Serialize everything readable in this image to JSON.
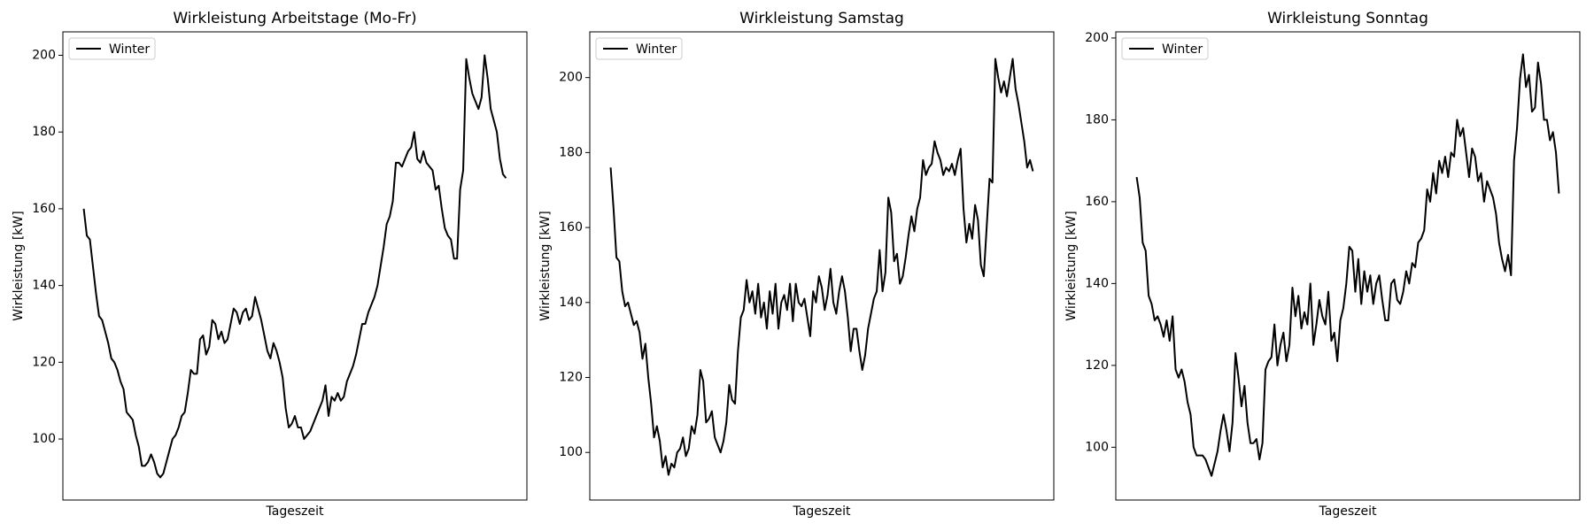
{
  "chart_data": [
    {
      "type": "line",
      "title": "Wirkleistung Arbeitstage (Mo-Fr)",
      "xlabel": "Tageszeit",
      "ylabel": "Wirkleistung [kW]",
      "ylim": [
        84.1,
        206.1
      ],
      "yticks": [
        100,
        120,
        140,
        160,
        180,
        200
      ],
      "legend": "upper left",
      "series": [
        {
          "name": "Winter",
          "color": "#000000",
          "values": [
            160,
            153,
            152,
            145,
            138,
            132,
            131,
            128,
            125,
            121,
            120,
            118,
            115,
            113,
            107,
            106,
            105,
            101,
            98,
            93,
            93,
            94,
            96,
            94,
            91,
            90,
            91,
            94,
            97,
            100,
            101,
            103,
            106,
            107,
            112,
            118,
            117,
            117,
            126,
            127,
            122,
            124,
            131,
            130,
            126,
            128,
            125,
            126,
            130,
            134,
            133,
            130,
            133,
            134,
            131,
            132,
            137,
            134,
            131,
            127,
            123,
            121,
            125,
            123,
            120,
            116,
            108,
            103,
            104,
            106,
            103,
            103,
            100,
            101,
            102,
            104,
            106,
            108,
            110,
            114,
            106,
            111,
            110,
            112,
            110,
            111,
            115,
            117,
            119,
            122,
            126,
            130,
            130,
            133,
            135,
            137,
            140,
            145,
            150,
            156,
            158,
            162,
            172,
            172,
            171,
            173,
            175,
            176,
            180,
            173,
            172,
            175,
            172,
            171,
            170,
            165,
            166,
            160,
            155,
            153,
            152,
            147,
            147,
            165,
            170,
            199,
            194,
            190,
            188,
            186,
            189,
            200,
            194,
            186,
            183,
            180,
            173,
            169,
            168
          ]
        }
      ]
    },
    {
      "type": "line",
      "title": "Wirkleistung Samstag",
      "xlabel": "Tageszeit",
      "ylabel": "Wirkleistung [kW]",
      "ylim": [
        87.3,
        212.2
      ],
      "yticks": [
        100,
        120,
        140,
        160,
        180,
        200
      ],
      "legend": "upper left",
      "series": [
        {
          "name": "Winter",
          "color": "#000000",
          "values": [
            176,
            165,
            152,
            151,
            143,
            139,
            140,
            137,
            134,
            135,
            132,
            125,
            129,
            120,
            113,
            104,
            107,
            103,
            96,
            99,
            94,
            97,
            96,
            100,
            101,
            104,
            99,
            101,
            107,
            105,
            110,
            122,
            119,
            108,
            109,
            111,
            104,
            102,
            100,
            103,
            108,
            118,
            114,
            113,
            127,
            136,
            138,
            146,
            140,
            143,
            137,
            145,
            136,
            140,
            133,
            143,
            137,
            145,
            133,
            140,
            142,
            138,
            145,
            135,
            145,
            140,
            139,
            141,
            136,
            131,
            143,
            140,
            147,
            144,
            138,
            142,
            149,
            140,
            137,
            143,
            147,
            143,
            136,
            127,
            133,
            133,
            127,
            122,
            126,
            133,
            137,
            141,
            143,
            154,
            143,
            148,
            168,
            164,
            151,
            153,
            145,
            147,
            152,
            158,
            163,
            159,
            165,
            168,
            178,
            174,
            176,
            177,
            183,
            180,
            178,
            174,
            176,
            175,
            177,
            174,
            178,
            181,
            165,
            156,
            161,
            157,
            166,
            162,
            150,
            147,
            160,
            173,
            172,
            205,
            200,
            196,
            199,
            195,
            200,
            205,
            197,
            193,
            188,
            183,
            176,
            178,
            175
          ]
        }
      ]
    },
    {
      "type": "line",
      "title": "Wirkleistung Sonntag",
      "xlabel": "Tageszeit",
      "ylabel": "Wirkleistung [kW]",
      "ylim": [
        87.1,
        201.5
      ],
      "yticks": [
        100,
        120,
        140,
        160,
        180,
        200
      ],
      "legend": "upper left",
      "series": [
        {
          "name": "Winter",
          "color": "#000000",
          "values": [
            166,
            161,
            150,
            148,
            137,
            135,
            131,
            132,
            130,
            127,
            131,
            126,
            132,
            119,
            117,
            119,
            116,
            111,
            108,
            100,
            98,
            98,
            98,
            97,
            95,
            93,
            96,
            99,
            104,
            108,
            104,
            99,
            106,
            123,
            117,
            110,
            115,
            106,
            101,
            101,
            102,
            97,
            101,
            119,
            121,
            122,
            130,
            120,
            125,
            128,
            121,
            125,
            139,
            132,
            137,
            129,
            133,
            130,
            140,
            125,
            130,
            136,
            132,
            130,
            138,
            126,
            128,
            121,
            131,
            134,
            140,
            149,
            148,
            138,
            146,
            135,
            143,
            138,
            142,
            135,
            140,
            142,
            136,
            131,
            131,
            140,
            141,
            136,
            135,
            138,
            143,
            140,
            145,
            144,
            150,
            151,
            153,
            163,
            160,
            167,
            162,
            170,
            167,
            171,
            166,
            172,
            171,
            180,
            176,
            178,
            172,
            166,
            173,
            171,
            165,
            167,
            160,
            165,
            163,
            161,
            157,
            150,
            146,
            143,
            147,
            142,
            170,
            178,
            190,
            196,
            188,
            191,
            182,
            183,
            194,
            189,
            180,
            180,
            175,
            177,
            172,
            162
          ]
        }
      ]
    }
  ]
}
